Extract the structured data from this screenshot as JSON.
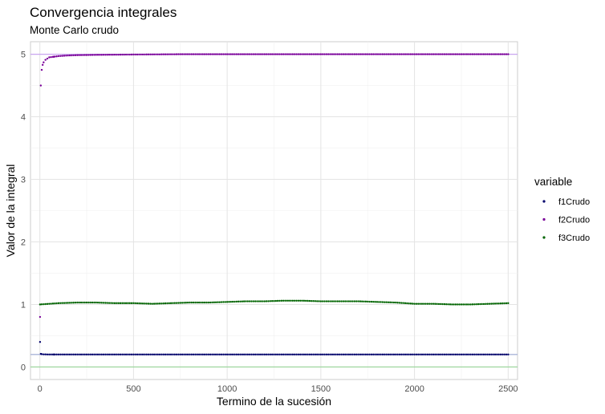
{
  "chart_data": {
    "type": "scatter",
    "title": "Convergencia integrales",
    "subtitle": "Monte Carlo crudo",
    "xlabel": "Termino de la sucesión",
    "ylabel": "Valor de la integral",
    "xlim": [
      -50,
      2550
    ],
    "ylim": [
      -0.2,
      5.2
    ],
    "x_ticks": [
      0,
      500,
      1000,
      1500,
      2000,
      2500
    ],
    "y_ticks": [
      0,
      1,
      2,
      3,
      4,
      5
    ],
    "grid": true,
    "legend": {
      "title": "variable",
      "position": "right"
    },
    "reference_lines": [
      {
        "y": 5,
        "color": "#c9a6f0"
      },
      {
        "y": 0.2,
        "color": "#aab4d8"
      },
      {
        "y": 0,
        "color": "#9fd89f"
      }
    ],
    "series": [
      {
        "name": "f1Crudo",
        "color": "#00006b",
        "x": [
          1,
          5,
          10,
          20,
          30,
          50,
          75,
          100,
          150,
          200,
          300,
          500,
          750,
          1000,
          1250,
          1500,
          1750,
          2000,
          2250,
          2500
        ],
        "y": [
          0.4,
          0.21,
          0.205,
          0.202,
          0.201,
          0.2,
          0.2,
          0.2,
          0.2,
          0.2,
          0.2,
          0.2,
          0.2,
          0.2,
          0.2,
          0.2,
          0.2,
          0.2,
          0.2,
          0.2
        ]
      },
      {
        "name": "f2Crudo",
        "color": "#7a0099",
        "x": [
          1,
          5,
          10,
          15,
          20,
          30,
          40,
          50,
          75,
          100,
          150,
          200,
          300,
          500,
          750,
          1000,
          1250,
          1500,
          1750,
          2000,
          2250,
          2500
        ],
        "y": [
          0.8,
          4.5,
          4.75,
          4.83,
          4.87,
          4.91,
          4.93,
          4.95,
          4.96,
          4.97,
          4.98,
          4.985,
          4.99,
          4.995,
          5.0,
          5.0,
          5.0,
          5.0,
          5.0,
          5.0,
          5.0,
          5.0
        ]
      },
      {
        "name": "f3Crudo",
        "color": "#006400",
        "x": [
          1,
          100,
          200,
          300,
          400,
          500,
          600,
          700,
          800,
          900,
          1000,
          1100,
          1200,
          1300,
          1400,
          1500,
          1600,
          1700,
          1800,
          1900,
          2000,
          2100,
          2200,
          2300,
          2400,
          2500
        ],
        "y": [
          1.0,
          1.02,
          1.03,
          1.03,
          1.02,
          1.02,
          1.01,
          1.02,
          1.03,
          1.03,
          1.04,
          1.05,
          1.05,
          1.06,
          1.06,
          1.05,
          1.05,
          1.05,
          1.04,
          1.03,
          1.01,
          1.01,
          1.0,
          1.0,
          1.01,
          1.02
        ]
      }
    ]
  }
}
